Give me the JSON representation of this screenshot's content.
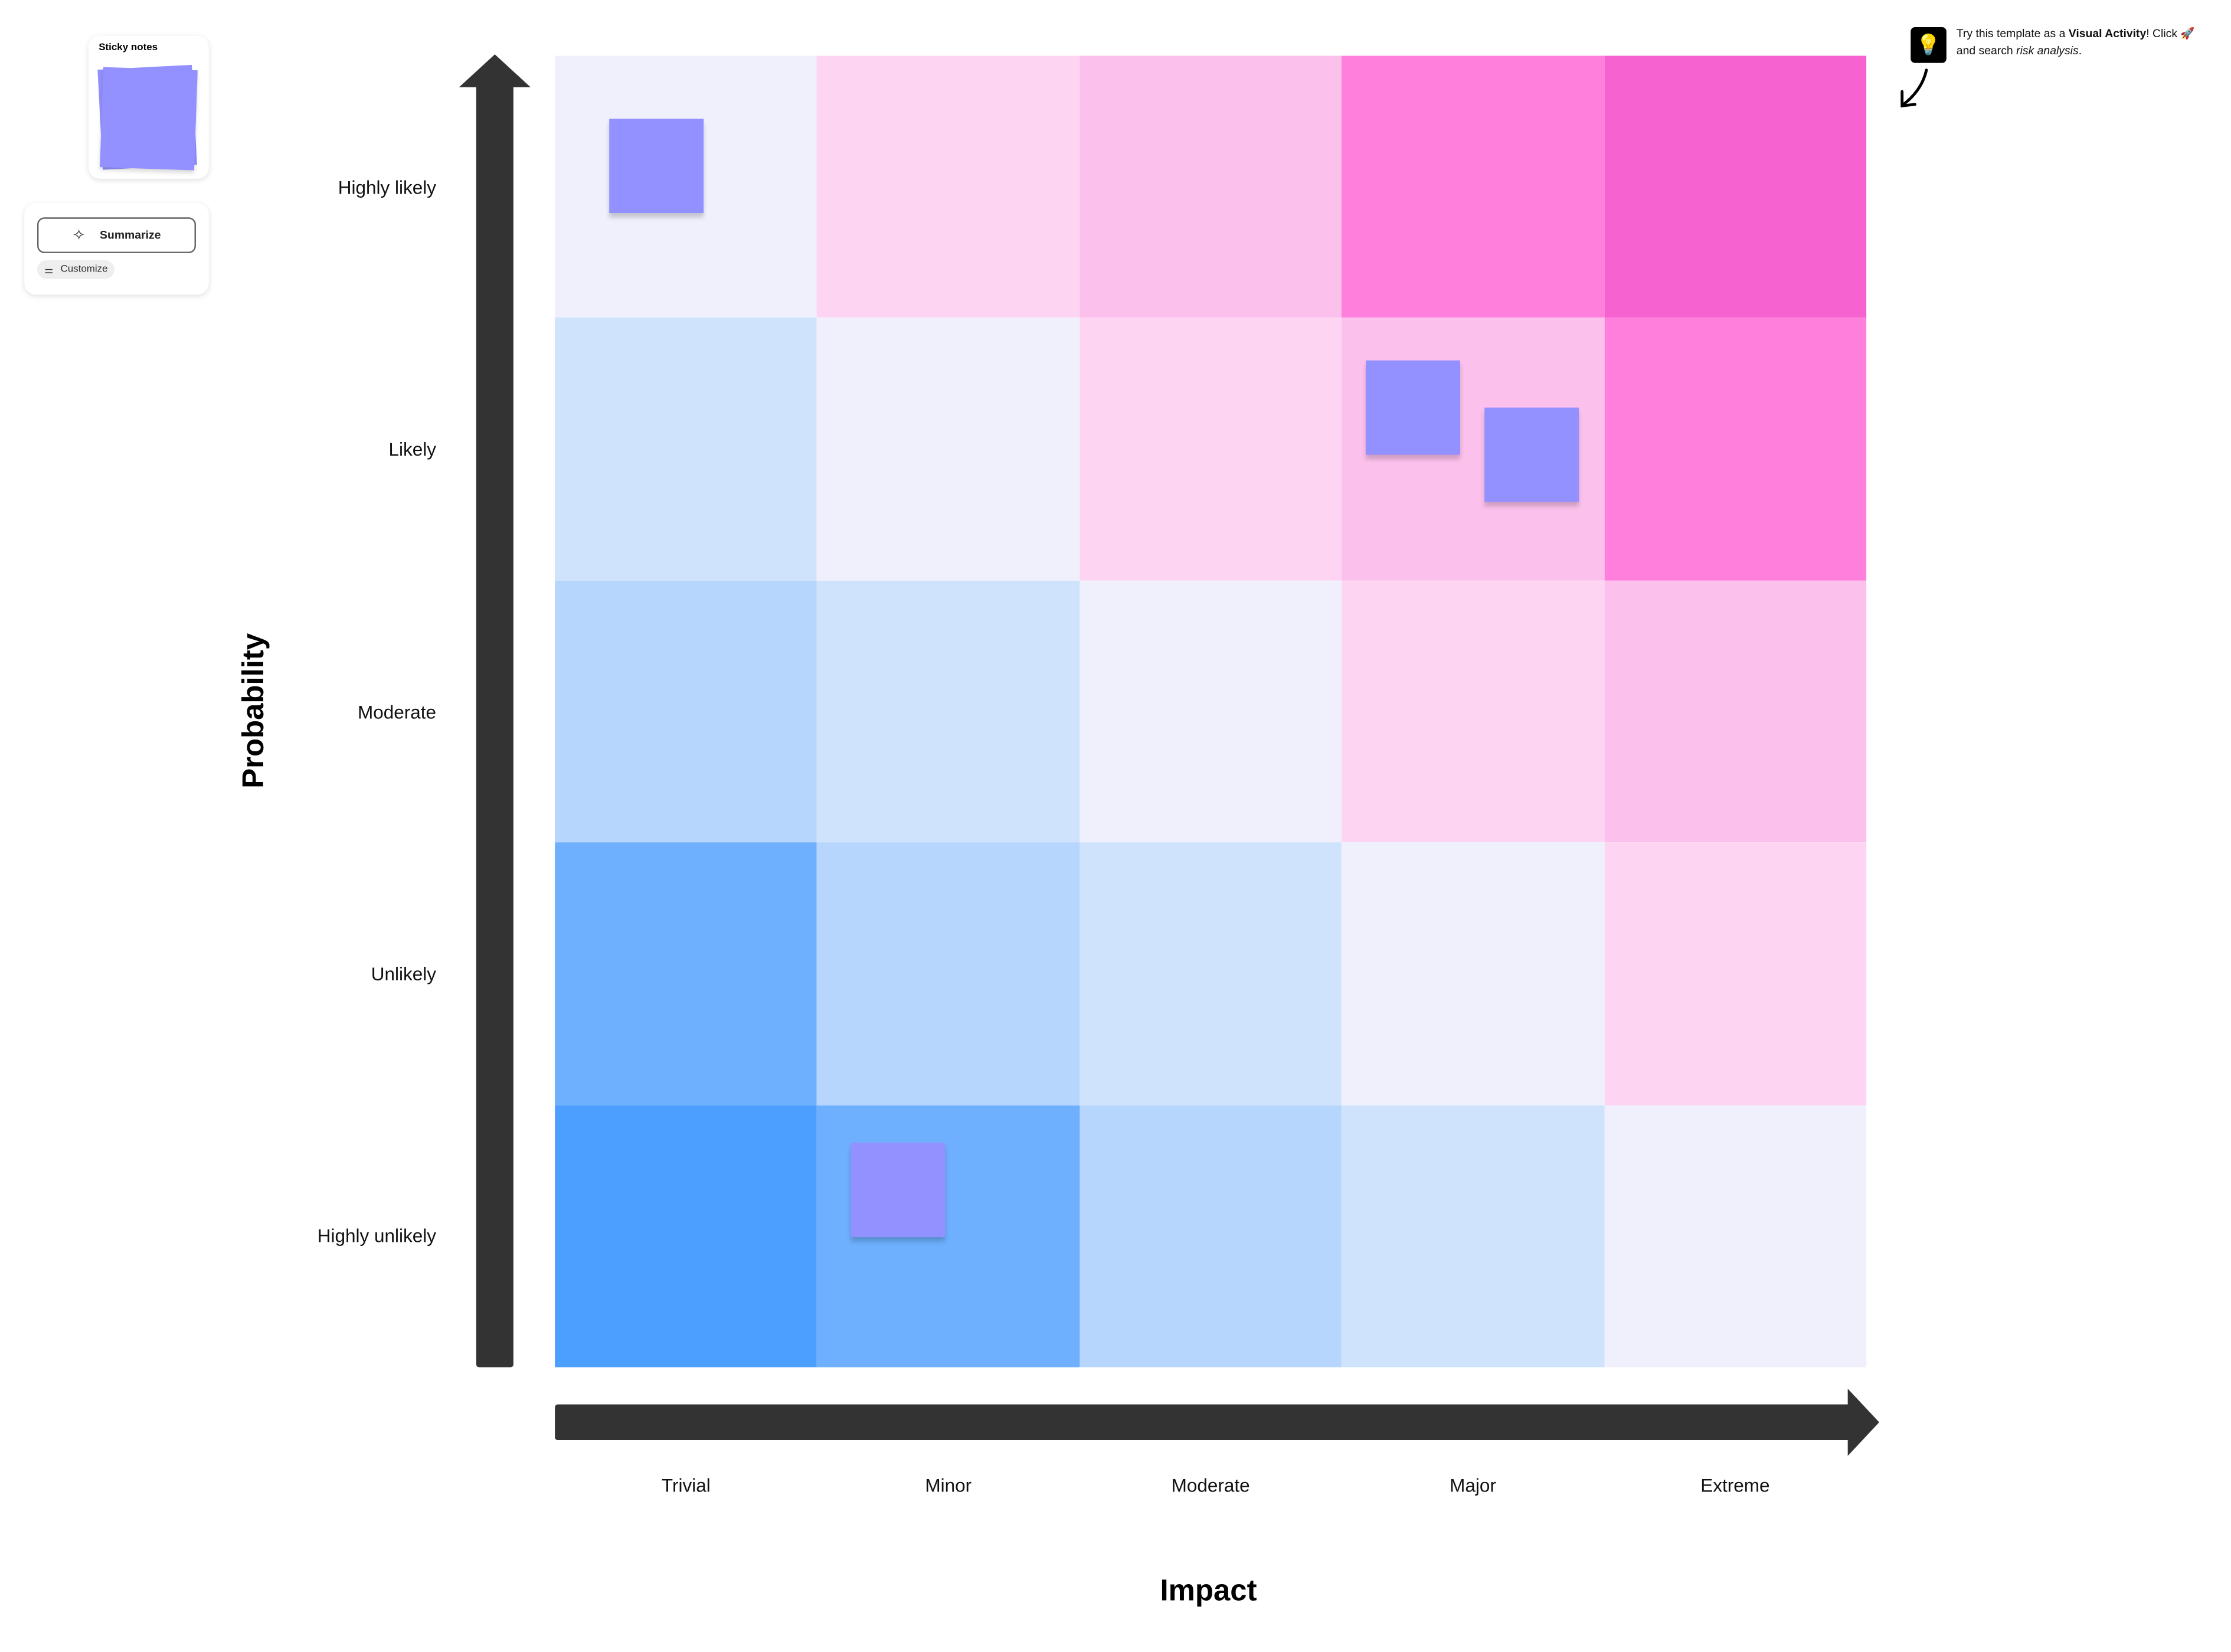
{
  "widgets": {
    "sticky_notes_title": "Sticky notes",
    "summarize_label": "Summarize",
    "customize_label": "Customize"
  },
  "tip": {
    "text_prefix": "Try this template as a ",
    "text_bold": "Visual Activity",
    "text_mid": "! Click",
    "text_line2_prefix": "and search ",
    "text_italic": "risk analysis",
    "text_suffix": "."
  },
  "matrix": {
    "y_axis_title": "Probability",
    "x_axis_title": "Impact",
    "rows": [
      "Highly likely",
      "Likely",
      "Moderate",
      "Unlikely",
      "Highly unlikely"
    ],
    "columns": [
      "Trivial",
      "Minor",
      "Moderate",
      "Major",
      "Extreme"
    ],
    "cell_colors": [
      [
        "#f0f0fc",
        "#fdd5f3",
        "#fcc0ec",
        "#ff80dc",
        "#f662d0"
      ],
      [
        "#d0e3fd",
        "#f0f0fc",
        "#fdd5f3",
        "#fcc0ec",
        "#ff80dc"
      ],
      [
        "#b6d6fe",
        "#d0e3fd",
        "#f0f0fc",
        "#fdd5f3",
        "#fcc0ec"
      ],
      [
        "#6eb0fe",
        "#b6d6fe",
        "#d0e3fd",
        "#f0f0fc",
        "#fdd5f3"
      ],
      [
        "#4d9fff",
        "#6eb0fe",
        "#b6d6fe",
        "#d0e3fd",
        "#f0f0fc"
      ]
    ],
    "sticky_color": "#9391ff",
    "stickies": [
      {
        "row": "Highly likely",
        "column": "Trivial"
      },
      {
        "row": "Likely",
        "column": "Major"
      },
      {
        "row": "Likely",
        "column": "Major"
      },
      {
        "row": "Highly unlikely",
        "column": "Minor"
      }
    ],
    "arrow_color": "#333333"
  }
}
